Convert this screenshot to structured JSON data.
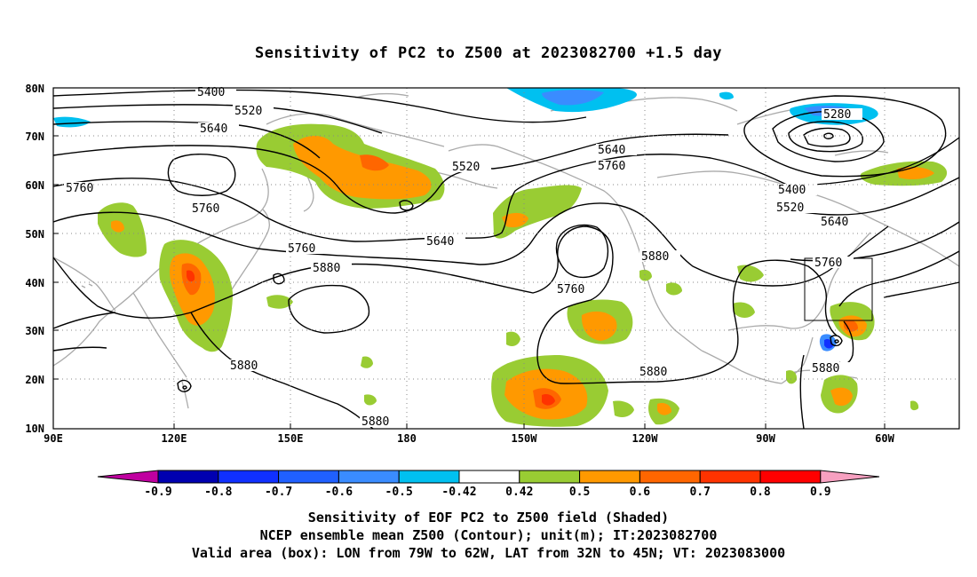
{
  "title": "Sensitivity of PC2 to Z500 at 2023082700 +1.5 day",
  "axes": {
    "lat_ticks": [
      "80N",
      "70N",
      "60N",
      "50N",
      "40N",
      "30N",
      "20N",
      "10N"
    ],
    "lon_ticks": [
      "90E",
      "120E",
      "150E",
      "180",
      "150W",
      "120W",
      "90W",
      "60W"
    ]
  },
  "contour_labels": [
    "5400",
    "5520",
    "5640",
    "5760",
    "5760",
    "5880",
    "5640",
    "5760",
    "5880",
    "5880",
    "5880",
    "5520",
    "5640",
    "5760",
    "5880",
    "5760",
    "5280",
    "5400",
    "5520",
    "5640",
    "5760",
    "5880"
  ],
  "colorbar": {
    "labels": [
      "-0.9",
      "-0.8",
      "-0.7",
      "-0.6",
      "-0.5",
      "-0.42",
      "0.42",
      "0.5",
      "0.6",
      "0.7",
      "0.8",
      "0.9"
    ],
    "colors": [
      "#c000a0",
      "#0000b0",
      "#1030ff",
      "#2060ff",
      "#3a8cff",
      "#00c0f0",
      "#ffffff",
      "#99cc33",
      "#ff9900",
      "#ff6600",
      "#ff3300",
      "#ff0000",
      "#f7a0c0"
    ]
  },
  "valid_box": {
    "lon_from": "79W",
    "lon_to": "62W",
    "lat_from": "32N",
    "lat_to": "45N"
  },
  "captions": {
    "line1": "Sensitivity of EOF PC2 to Z500 field (Shaded)",
    "line2": "NCEP ensemble mean Z500 (Contour); unit(m); IT:2023082700",
    "line3": "Valid area (box): LON from 79W to 62W, LAT from 32N to 45N; VT: 2023083000"
  }
}
